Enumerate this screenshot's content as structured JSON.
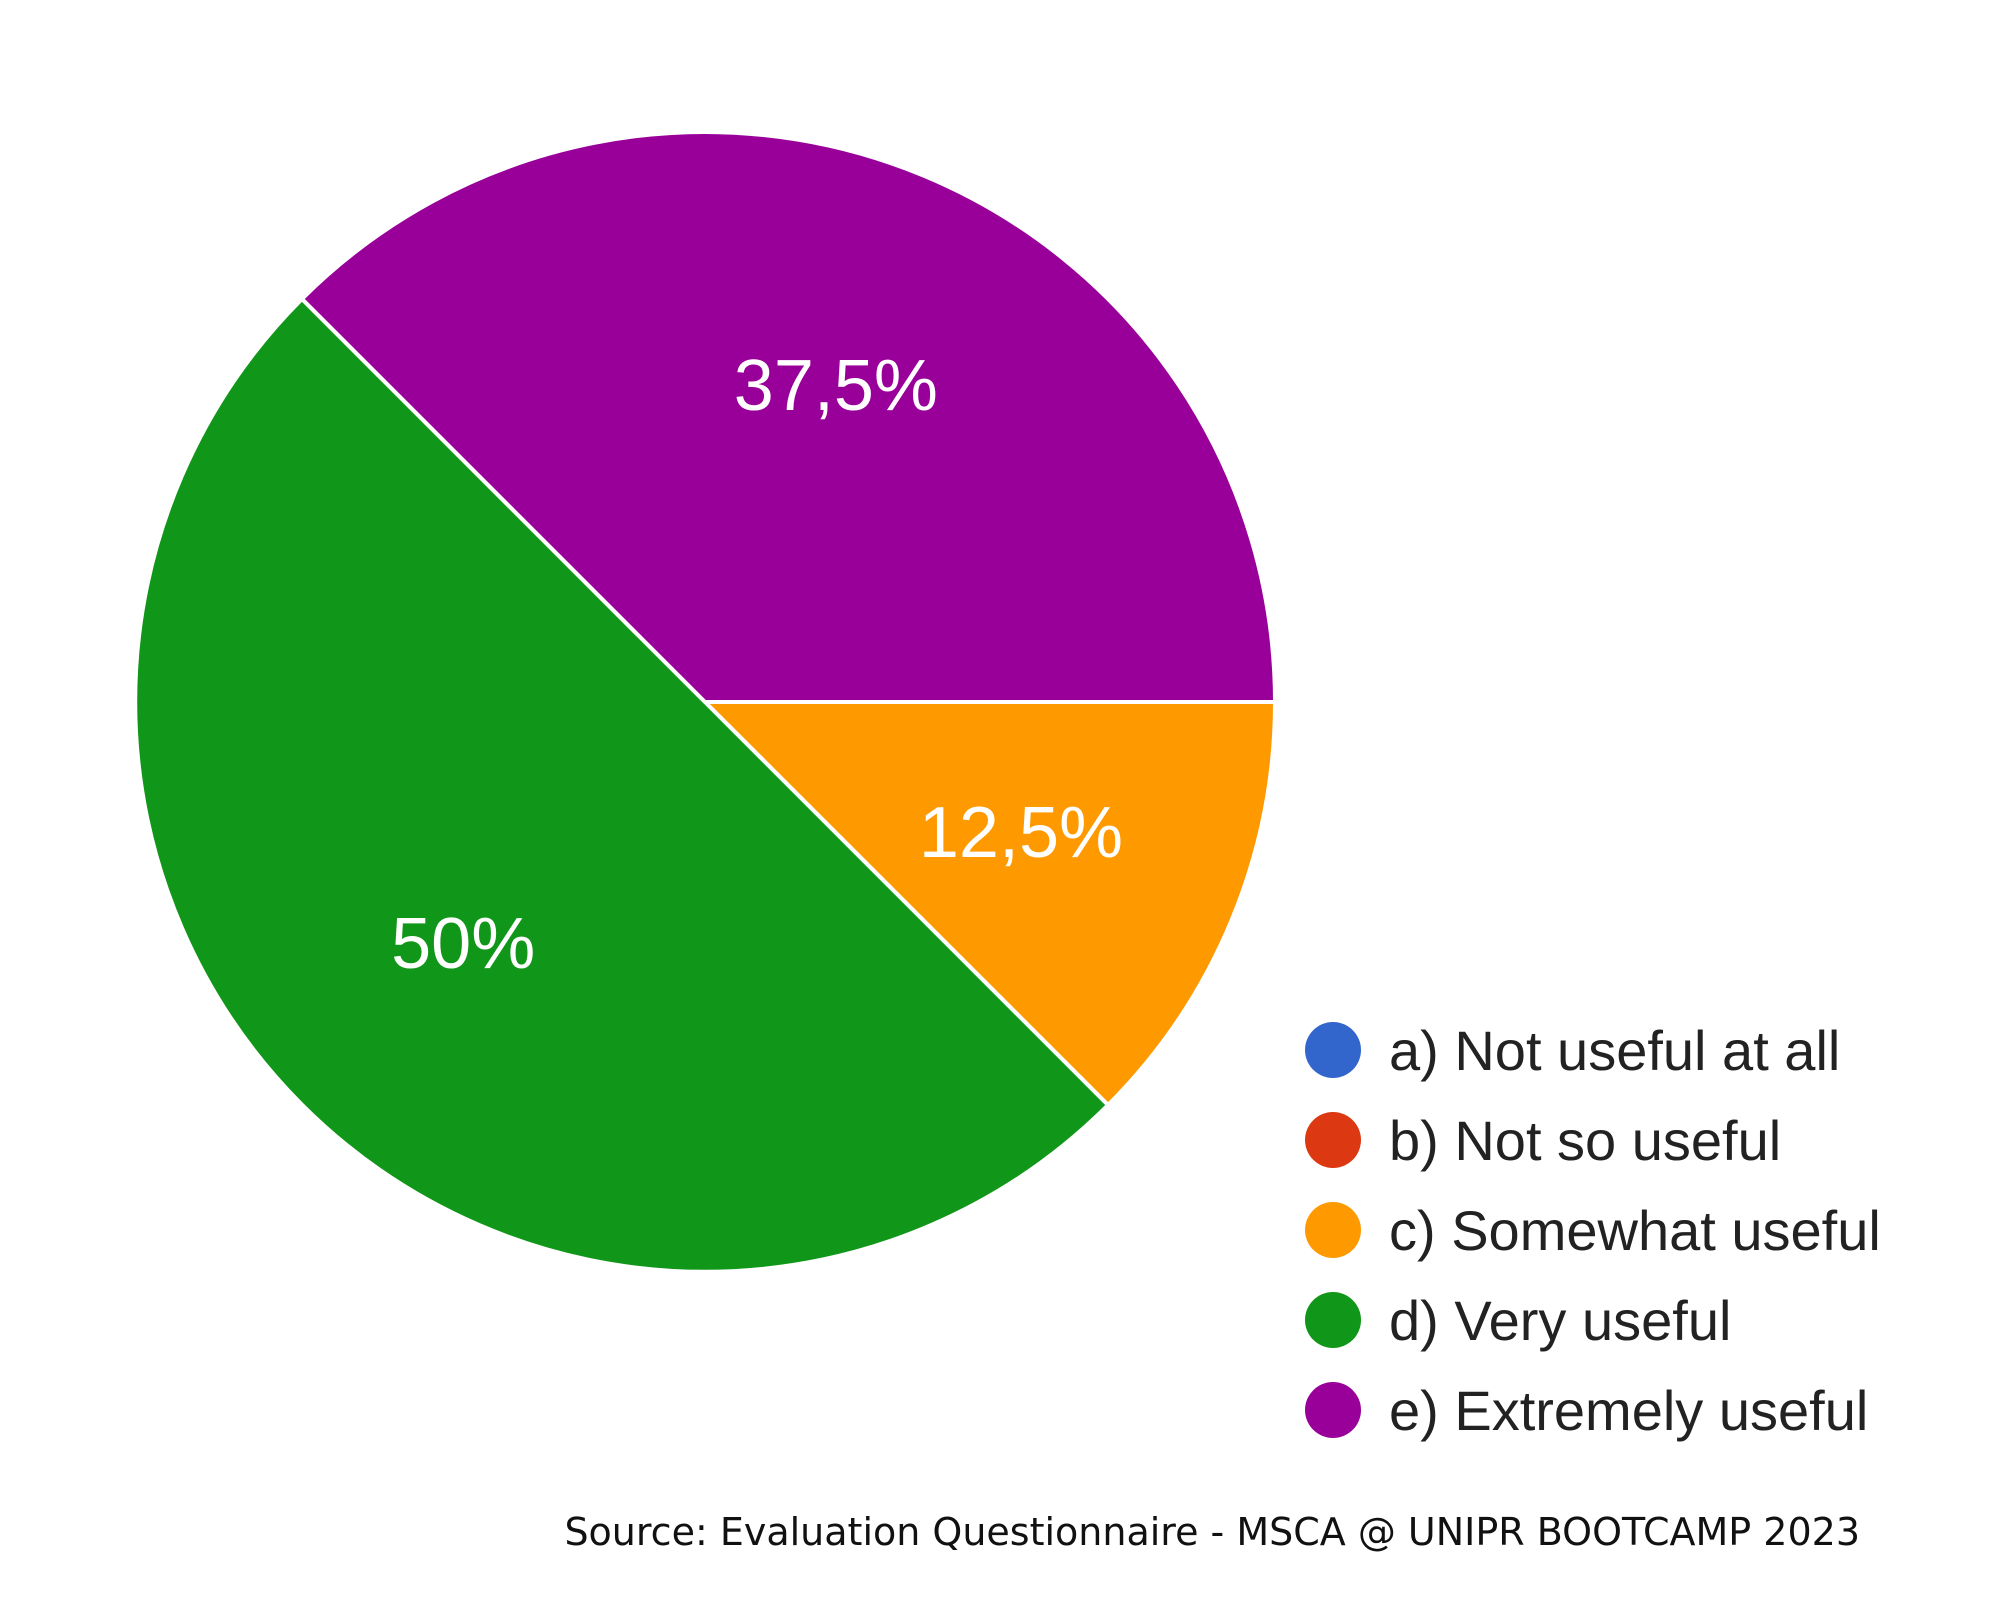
{
  "chart_data": {
    "type": "pie",
    "categories": [
      "a) Not useful at all",
      "b) Not so useful",
      "c) Somewhat useful",
      "d) Very useful",
      "e) Extremely useful"
    ],
    "values": [
      0,
      0,
      12.5,
      50,
      37.5
    ],
    "data_labels": [
      "",
      "",
      "12,5%",
      "50%",
      "37,5%"
    ],
    "colors": [
      "#3366cc",
      "#dc3912",
      "#ff9900",
      "#109618",
      "#990099"
    ],
    "legend_position": "bottom-right",
    "unit": "%",
    "start_angle_deg": 0,
    "direction": "clockwise"
  },
  "legend": {
    "items": [
      {
        "label": "a) Not useful at all",
        "color": "#3366cc"
      },
      {
        "label": "b) Not so useful",
        "color": "#dc3912"
      },
      {
        "label": "c) Somewhat useful",
        "color": "#ff9900"
      },
      {
        "label": "d) Very useful",
        "color": "#109618"
      },
      {
        "label": "e) Extremely useful",
        "color": "#990099"
      }
    ]
  },
  "footer": {
    "source": "Source: Evaluation Questionnaire - MSCA @ UNIPR BOOTCAMP 2023"
  }
}
